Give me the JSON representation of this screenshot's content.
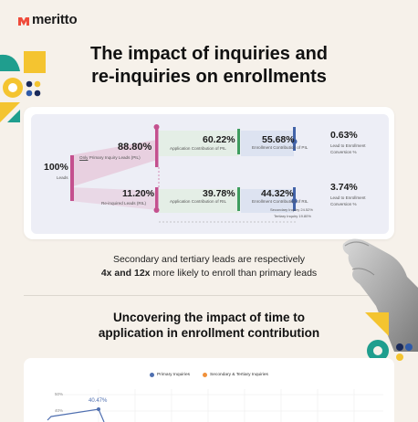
{
  "brand": {
    "name": "meritto",
    "accent": "#ef4b3b"
  },
  "title": {
    "line1": "The impact of inquiries and",
    "line2": "re-inquiries on enrollments"
  },
  "flow": {
    "leads": {
      "pct": "100%",
      "label": "Leads"
    },
    "primary": {
      "pct": "88.80%",
      "label_prefix": "Only",
      "label_rest": " Primary Inquiry Leads (PIL)"
    },
    "reinquired": {
      "pct": "11.20%",
      "label": "Re-inquired Leads (RIL)"
    },
    "app_pil": {
      "pct": "60.22%",
      "label": "Application Contribution of PIL"
    },
    "app_ril": {
      "pct": "39.78%",
      "label": "Application Contribution of RIL"
    },
    "enr_pil": {
      "pct": "55.68%",
      "label": "Enrollment Contribution of PIL"
    },
    "enr_ril": {
      "pct": "44.32%",
      "label": "Enrollment Contribution of RIL",
      "sec": "Secondary Inquiry 24.52%",
      "ter": "Tertiary Inquiry 19.80%"
    },
    "conv_pil": {
      "pct": "0.63%",
      "label1": "Lead to Enrollment",
      "label2": "Conversion %"
    },
    "conv_ril": {
      "pct": "3.74%",
      "label1": "Lead to Enrollment",
      "label2": "Conversion %"
    }
  },
  "caption": {
    "line1": "Secondary and tertiary leads are respectively",
    "bold1": "4x and 12x",
    "rest2": " more likely to enroll than primary leads"
  },
  "section2": {
    "line1": "Uncovering the impact of time to",
    "line2": "application in enrollment contribution"
  },
  "chart_data": {
    "type": "line",
    "legend": [
      "Primary Inquiries",
      "Secondary & Tertiary Inquiries"
    ],
    "legend_position": "top-center",
    "colors": [
      "#4f6fb0",
      "#f0913a"
    ],
    "y_ticks": [
      "50%",
      "40%"
    ],
    "series": [
      {
        "name": "Primary Inquiries",
        "visible_label": "40.47%"
      }
    ]
  }
}
